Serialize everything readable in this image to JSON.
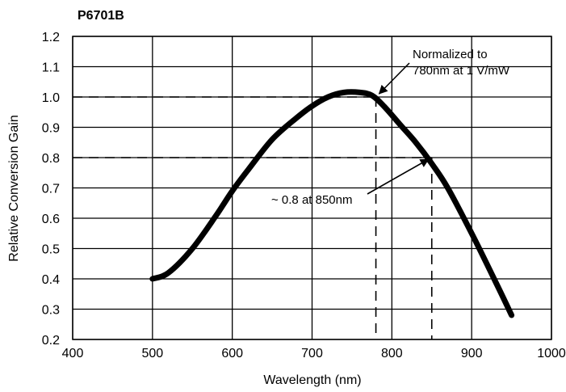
{
  "chart_data": {
    "type": "line",
    "title": "P6701B",
    "xlabel": "Wavelength (nm)",
    "ylabel": "Relative Conversion Gain",
    "xlim": [
      400,
      1000
    ],
    "ylim": [
      0.2,
      1.2
    ],
    "xticks": [
      "400",
      "500",
      "600",
      "700",
      "800",
      "900",
      "1000"
    ],
    "yticks": [
      "0.2",
      "0.3",
      "0.4",
      "0.5",
      "0.6",
      "0.7",
      "0.8",
      "0.9",
      "1.0",
      "1.1",
      "1.2"
    ],
    "grid": true,
    "series": [
      {
        "x": [
          500,
          520,
          550,
          580,
          600,
          620,
          650,
          680,
          700,
          720,
          740,
          760,
          775,
          790,
          810,
          830,
          850,
          870,
          900,
          930,
          950
        ],
        "y": [
          0.4,
          0.42,
          0.5,
          0.61,
          0.69,
          0.76,
          0.86,
          0.93,
          0.97,
          1.0,
          1.015,
          1.015,
          1.005,
          0.97,
          0.91,
          0.85,
          0.78,
          0.7,
          0.55,
          0.39,
          0.28
        ]
      }
    ],
    "reference_lines": [
      {
        "x": 780,
        "y": 1.0
      },
      {
        "x": 850,
        "y": 0.8
      }
    ],
    "annotations": [
      {
        "lines": [
          "Normalized to",
          "780nm at 1 V/mW"
        ],
        "target": {
          "x": 780,
          "y": 1.0
        }
      },
      {
        "lines": [
          "~ 0.8 at 850nm"
        ],
        "target": {
          "x": 850,
          "y": 0.8
        }
      }
    ]
  }
}
